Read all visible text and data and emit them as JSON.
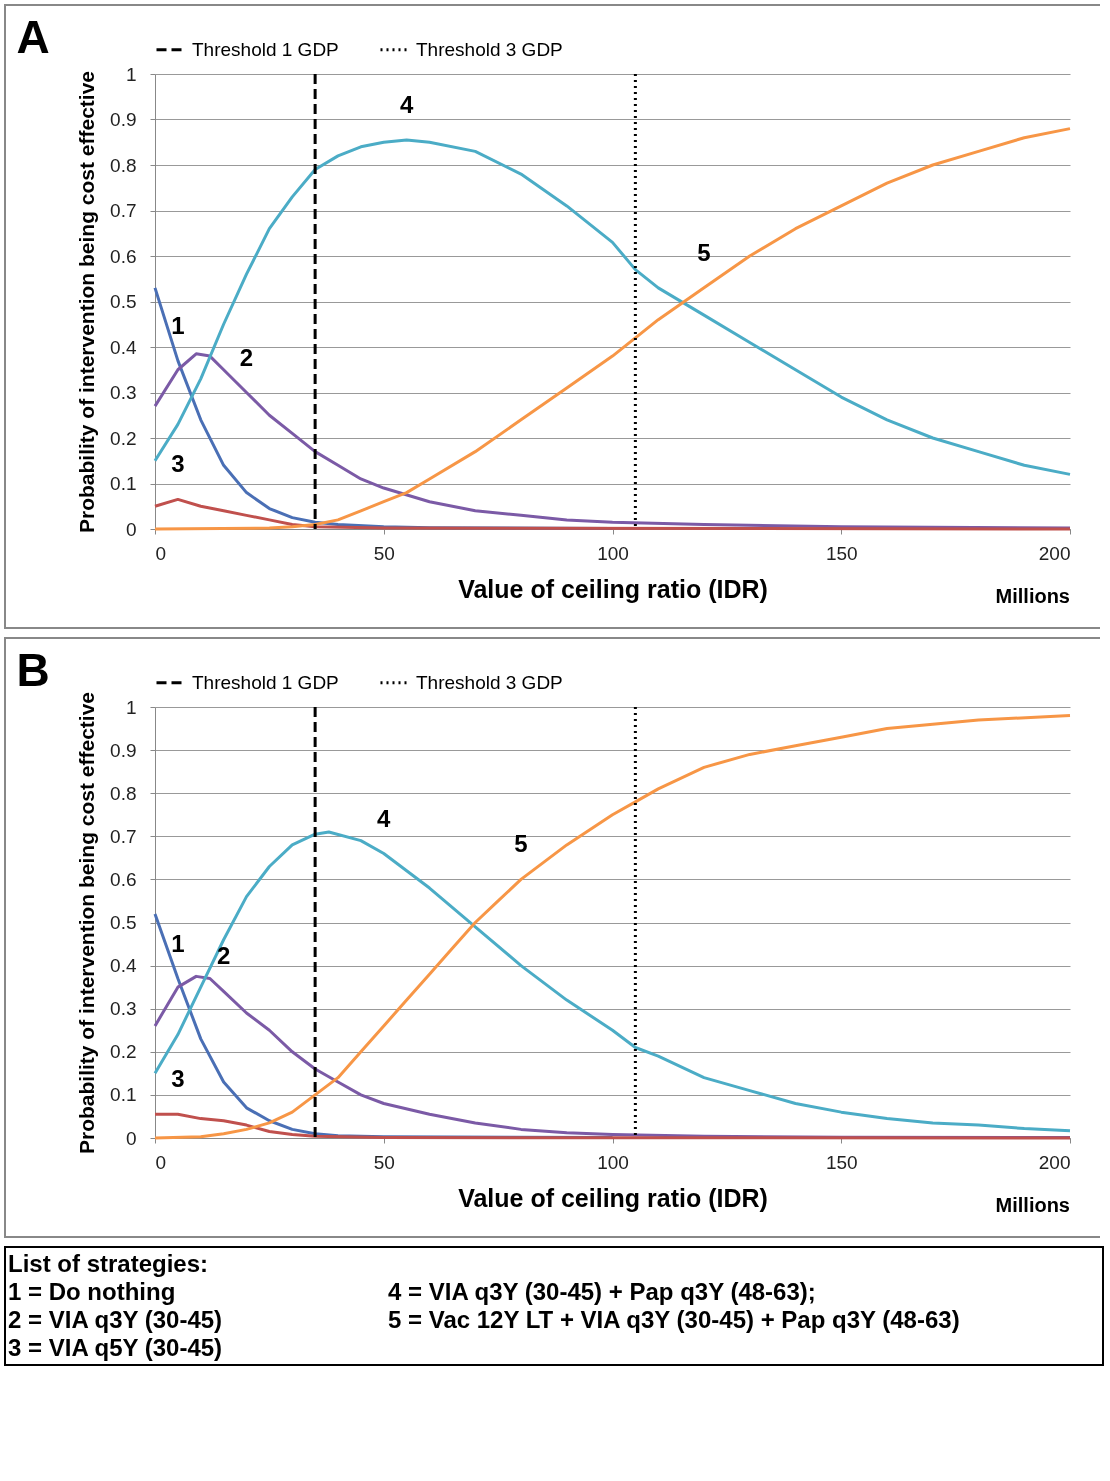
{
  "chart_data": [
    {
      "type": "line",
      "title": "A",
      "xlabel": "Value of ceiling ratio (IDR)",
      "ylabel": "Probability of intervention being cost effective",
      "xlim": [
        0,
        200
      ],
      "ylim": [
        0,
        1
      ],
      "xticks": [
        0,
        50,
        100,
        150,
        200
      ],
      "yticks": [
        0,
        0.1,
        0.2,
        0.3,
        0.4,
        0.5,
        0.6,
        0.7,
        0.8,
        0.9,
        1
      ],
      "grid": "y",
      "legend": "top",
      "line_style": "solid",
      "marker": "none",
      "series": [
        {
          "color": "#4a6fb5",
          "x": [
            0,
            5,
            10,
            15,
            20,
            25,
            30,
            35,
            40,
            50,
            60,
            100
          ],
          "values": [
            0.53,
            0.37,
            0.24,
            0.14,
            0.08,
            0.045,
            0.025,
            0.015,
            0.01,
            0.005,
            0.003,
            0.001
          ]
        },
        {
          "color": "#7b5aa6",
          "x": [
            0,
            5,
            9,
            12,
            15,
            20,
            25,
            30,
            35,
            40,
            45,
            50,
            60,
            70,
            80,
            90,
            100,
            120,
            150,
            200
          ],
          "values": [
            0.27,
            0.35,
            0.385,
            0.38,
            0.35,
            0.3,
            0.25,
            0.21,
            0.17,
            0.14,
            0.11,
            0.09,
            0.06,
            0.04,
            0.03,
            0.02,
            0.015,
            0.01,
            0.005,
            0.002
          ]
        },
        {
          "color": "#c0504d",
          "x": [
            0,
            5,
            10,
            15,
            20,
            25,
            30,
            35,
            50,
            200
          ],
          "values": [
            0.05,
            0.065,
            0.05,
            0.04,
            0.03,
            0.02,
            0.01,
            0.005,
            0.002,
            0
          ]
        },
        {
          "color": "#4bacc6",
          "x": [
            0,
            5,
            10,
            15,
            20,
            25,
            30,
            35,
            40,
            45,
            50,
            55,
            60,
            70,
            80,
            90,
            100,
            105,
            110,
            120,
            130,
            140,
            150,
            160,
            170,
            180,
            190,
            200
          ],
          "values": [
            0.15,
            0.23,
            0.33,
            0.45,
            0.56,
            0.66,
            0.73,
            0.79,
            0.82,
            0.84,
            0.85,
            0.855,
            0.85,
            0.83,
            0.78,
            0.71,
            0.63,
            0.57,
            0.53,
            0.47,
            0.41,
            0.35,
            0.29,
            0.24,
            0.2,
            0.17,
            0.14,
            0.12
          ]
        },
        {
          "color": "#f79646",
          "x": [
            0,
            25,
            30,
            35,
            40,
            45,
            50,
            55,
            60,
            70,
            80,
            90,
            100,
            105,
            110,
            120,
            130,
            140,
            150,
            160,
            170,
            180,
            190,
            200
          ],
          "values": [
            0,
            0.002,
            0.005,
            0.01,
            0.02,
            0.04,
            0.06,
            0.08,
            0.11,
            0.17,
            0.24,
            0.31,
            0.38,
            0.42,
            0.46,
            0.53,
            0.6,
            0.66,
            0.71,
            0.76,
            0.8,
            0.83,
            0.86,
            0.88
          ]
        }
      ],
      "ref_lines": [
        {
          "axis": "x",
          "value": 35,
          "label": "Threshold 1 GDP",
          "line_style": "dashed",
          "color": "#000000"
        },
        {
          "axis": "x",
          "value": 105,
          "label": "Threshold 3 GDP",
          "line_style": "dotted",
          "color": "#000000"
        }
      ],
      "annotations": [
        "Millions",
        {
          "text": "1",
          "x": 5,
          "y": 0.37
        },
        {
          "text": "2",
          "x": 20,
          "y": 0.3
        },
        {
          "text": "3",
          "x": 5,
          "y": 0.065
        },
        {
          "text": "4",
          "x": 55,
          "y": 0.855
        },
        {
          "text": "5",
          "x": 120,
          "y": 0.53
        }
      ]
    },
    {
      "type": "line",
      "title": "B",
      "xlabel": "Value of ceiling ratio (IDR)",
      "ylabel": "Probability of intervention being cost effective",
      "xlim": [
        0,
        200
      ],
      "ylim": [
        0,
        1
      ],
      "xticks": [
        0,
        50,
        100,
        150,
        200
      ],
      "yticks": [
        0,
        0.1,
        0.2,
        0.3,
        0.4,
        0.5,
        0.6,
        0.7,
        0.8,
        0.9,
        1
      ],
      "grid": "y",
      "legend": "top",
      "line_style": "solid",
      "marker": "none",
      "series": [
        {
          "color": "#4a6fb5",
          "x": [
            0,
            5,
            10,
            15,
            20,
            25,
            30,
            35,
            40,
            50,
            100
          ],
          "values": [
            0.52,
            0.37,
            0.23,
            0.13,
            0.07,
            0.04,
            0.02,
            0.01,
            0.005,
            0.003,
            0.001
          ]
        },
        {
          "color": "#7b5aa6",
          "x": [
            0,
            5,
            9,
            12,
            15,
            20,
            25,
            30,
            35,
            40,
            45,
            50,
            60,
            70,
            80,
            90,
            100,
            120,
            150,
            200
          ],
          "values": [
            0.26,
            0.35,
            0.375,
            0.37,
            0.34,
            0.29,
            0.25,
            0.2,
            0.16,
            0.13,
            0.1,
            0.08,
            0.055,
            0.035,
            0.02,
            0.012,
            0.008,
            0.004,
            0.002,
            0.001
          ]
        },
        {
          "color": "#c0504d",
          "x": [
            0,
            5,
            10,
            15,
            20,
            25,
            30,
            35,
            50,
            200
          ],
          "values": [
            0.055,
            0.055,
            0.045,
            0.04,
            0.03,
            0.015,
            0.008,
            0.004,
            0.001,
            0
          ]
        },
        {
          "color": "#4bacc6",
          "x": [
            0,
            5,
            10,
            15,
            20,
            25,
            30,
            35,
            38,
            45,
            50,
            55,
            60,
            70,
            80,
            90,
            100,
            105,
            110,
            120,
            130,
            140,
            150,
            160,
            170,
            180,
            190,
            200
          ],
          "values": [
            0.15,
            0.24,
            0.35,
            0.46,
            0.56,
            0.63,
            0.68,
            0.705,
            0.71,
            0.69,
            0.66,
            0.62,
            0.58,
            0.49,
            0.4,
            0.32,
            0.25,
            0.21,
            0.19,
            0.14,
            0.11,
            0.08,
            0.06,
            0.045,
            0.035,
            0.03,
            0.022,
            0.017
          ]
        },
        {
          "color": "#f79646",
          "x": [
            0,
            10,
            15,
            20,
            25,
            30,
            35,
            40,
            45,
            50,
            55,
            60,
            65,
            70,
            75,
            80,
            90,
            100,
            105,
            110,
            120,
            130,
            140,
            150,
            160,
            170,
            180,
            200
          ],
          "values": [
            0,
            0.003,
            0.01,
            0.02,
            0.035,
            0.06,
            0.1,
            0.14,
            0.2,
            0.26,
            0.32,
            0.38,
            0.44,
            0.5,
            0.55,
            0.6,
            0.68,
            0.75,
            0.78,
            0.81,
            0.86,
            0.89,
            0.91,
            0.93,
            0.95,
            0.96,
            0.97,
            0.98
          ]
        }
      ],
      "ref_lines": [
        {
          "axis": "x",
          "value": 35,
          "label": "Threshold 1 GDP",
          "line_style": "dashed",
          "color": "#000000"
        },
        {
          "axis": "x",
          "value": 105,
          "label": "Threshold 3 GDP",
          "line_style": "dotted",
          "color": "#000000"
        }
      ],
      "annotations": [
        "Millions",
        {
          "text": "1",
          "x": 5,
          "y": 0.37
        },
        {
          "text": "2",
          "x": 15,
          "y": 0.34
        },
        {
          "text": "3",
          "x": 5,
          "y": 0.055
        },
        {
          "text": "4",
          "x": 50,
          "y": 0.66
        },
        {
          "text": "5",
          "x": 80,
          "y": 0.6
        },
        "List of strategies:",
        "1 = Do nothing",
        "2 = VIA q3Y (30-45)",
        "3 = VIA q5Y (30-45)",
        "4 = VIA q3Y (30-45) + Pap q3Y (48-63);",
        "5 = Vac 12Y LT + VIA q3Y (30-45) + Pap q3Y (48-63)"
      ]
    }
  ]
}
